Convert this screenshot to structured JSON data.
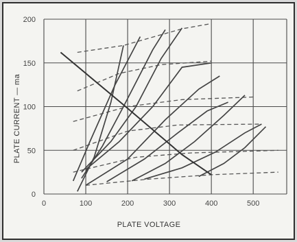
{
  "chart_data": {
    "type": "line",
    "title": "",
    "xlabel": "PLATE VOLTAGE",
    "ylabel": "PLATE CURRENT — ma",
    "xlim": [
      0,
      580
    ],
    "ylim": [
      0,
      200
    ],
    "grid": true,
    "x_ticks": [
      "0",
      "100",
      "200",
      "300",
      "400",
      "500"
    ],
    "y_ticks": [
      "0",
      "50",
      "100",
      "150",
      "200"
    ],
    "solid_series": [
      {
        "x": [
          80,
          120,
          160,
          190
        ],
        "y": [
          3,
          42,
          105,
          170
        ]
      },
      {
        "x": [
          70,
          110,
          170,
          230
        ],
        "y": [
          15,
          60,
          125,
          180
        ]
      },
      {
        "x": [
          90,
          140,
          190,
          260,
          290
        ],
        "y": [
          18,
          55,
          100,
          165,
          188
        ]
      },
      {
        "x": [
          90,
          160,
          220,
          280,
          330
        ],
        "y": [
          25,
          60,
          100,
          155,
          190
        ]
      },
      {
        "x": [
          100,
          180,
          260,
          330,
          400
        ],
        "y": [
          28,
          60,
          100,
          145,
          150
        ]
      },
      {
        "x": [
          100,
          200,
          290,
          370,
          420
        ],
        "y": [
          10,
          40,
          85,
          120,
          135
        ]
      },
      {
        "x": [
          150,
          240,
          320,
          390,
          440
        ],
        "y": [
          14,
          40,
          70,
          95,
          105
        ]
      },
      {
        "x": [
          210,
          290,
          360,
          430,
          480
        ],
        "y": [
          15,
          35,
          60,
          90,
          113
        ]
      },
      {
        "x": [
          240,
          330,
          410,
          480,
          520
        ],
        "y": [
          17,
          30,
          48,
          70,
          80
        ]
      },
      {
        "x": [
          370,
          430,
          480,
          530
        ],
        "y": [
          20,
          35,
          53,
          77
        ]
      }
    ],
    "dashed_series": [
      {
        "x": [
          80,
          190,
          330,
          400
        ],
        "y": [
          162,
          170,
          189,
          195
        ]
      },
      {
        "x": [
          80,
          180,
          280,
          400
        ],
        "y": [
          118,
          138,
          148,
          152
        ]
      },
      {
        "x": [
          70,
          200,
          330,
          500
        ],
        "y": [
          83,
          100,
          108,
          111
        ]
      },
      {
        "x": [
          70,
          200,
          320,
          520
        ],
        "y": [
          50,
          72,
          79,
          80
        ]
      },
      {
        "x": [
          70,
          220,
          350,
          560
        ],
        "y": [
          25,
          42,
          47,
          50
        ]
      },
      {
        "x": [
          100,
          250,
          400,
          560
        ],
        "y": [
          10,
          17,
          22,
          25
        ]
      }
    ],
    "load_line": {
      "x": [
        40,
        190,
        330,
        400
      ],
      "y": [
        162,
        102,
        45,
        22
      ]
    }
  }
}
